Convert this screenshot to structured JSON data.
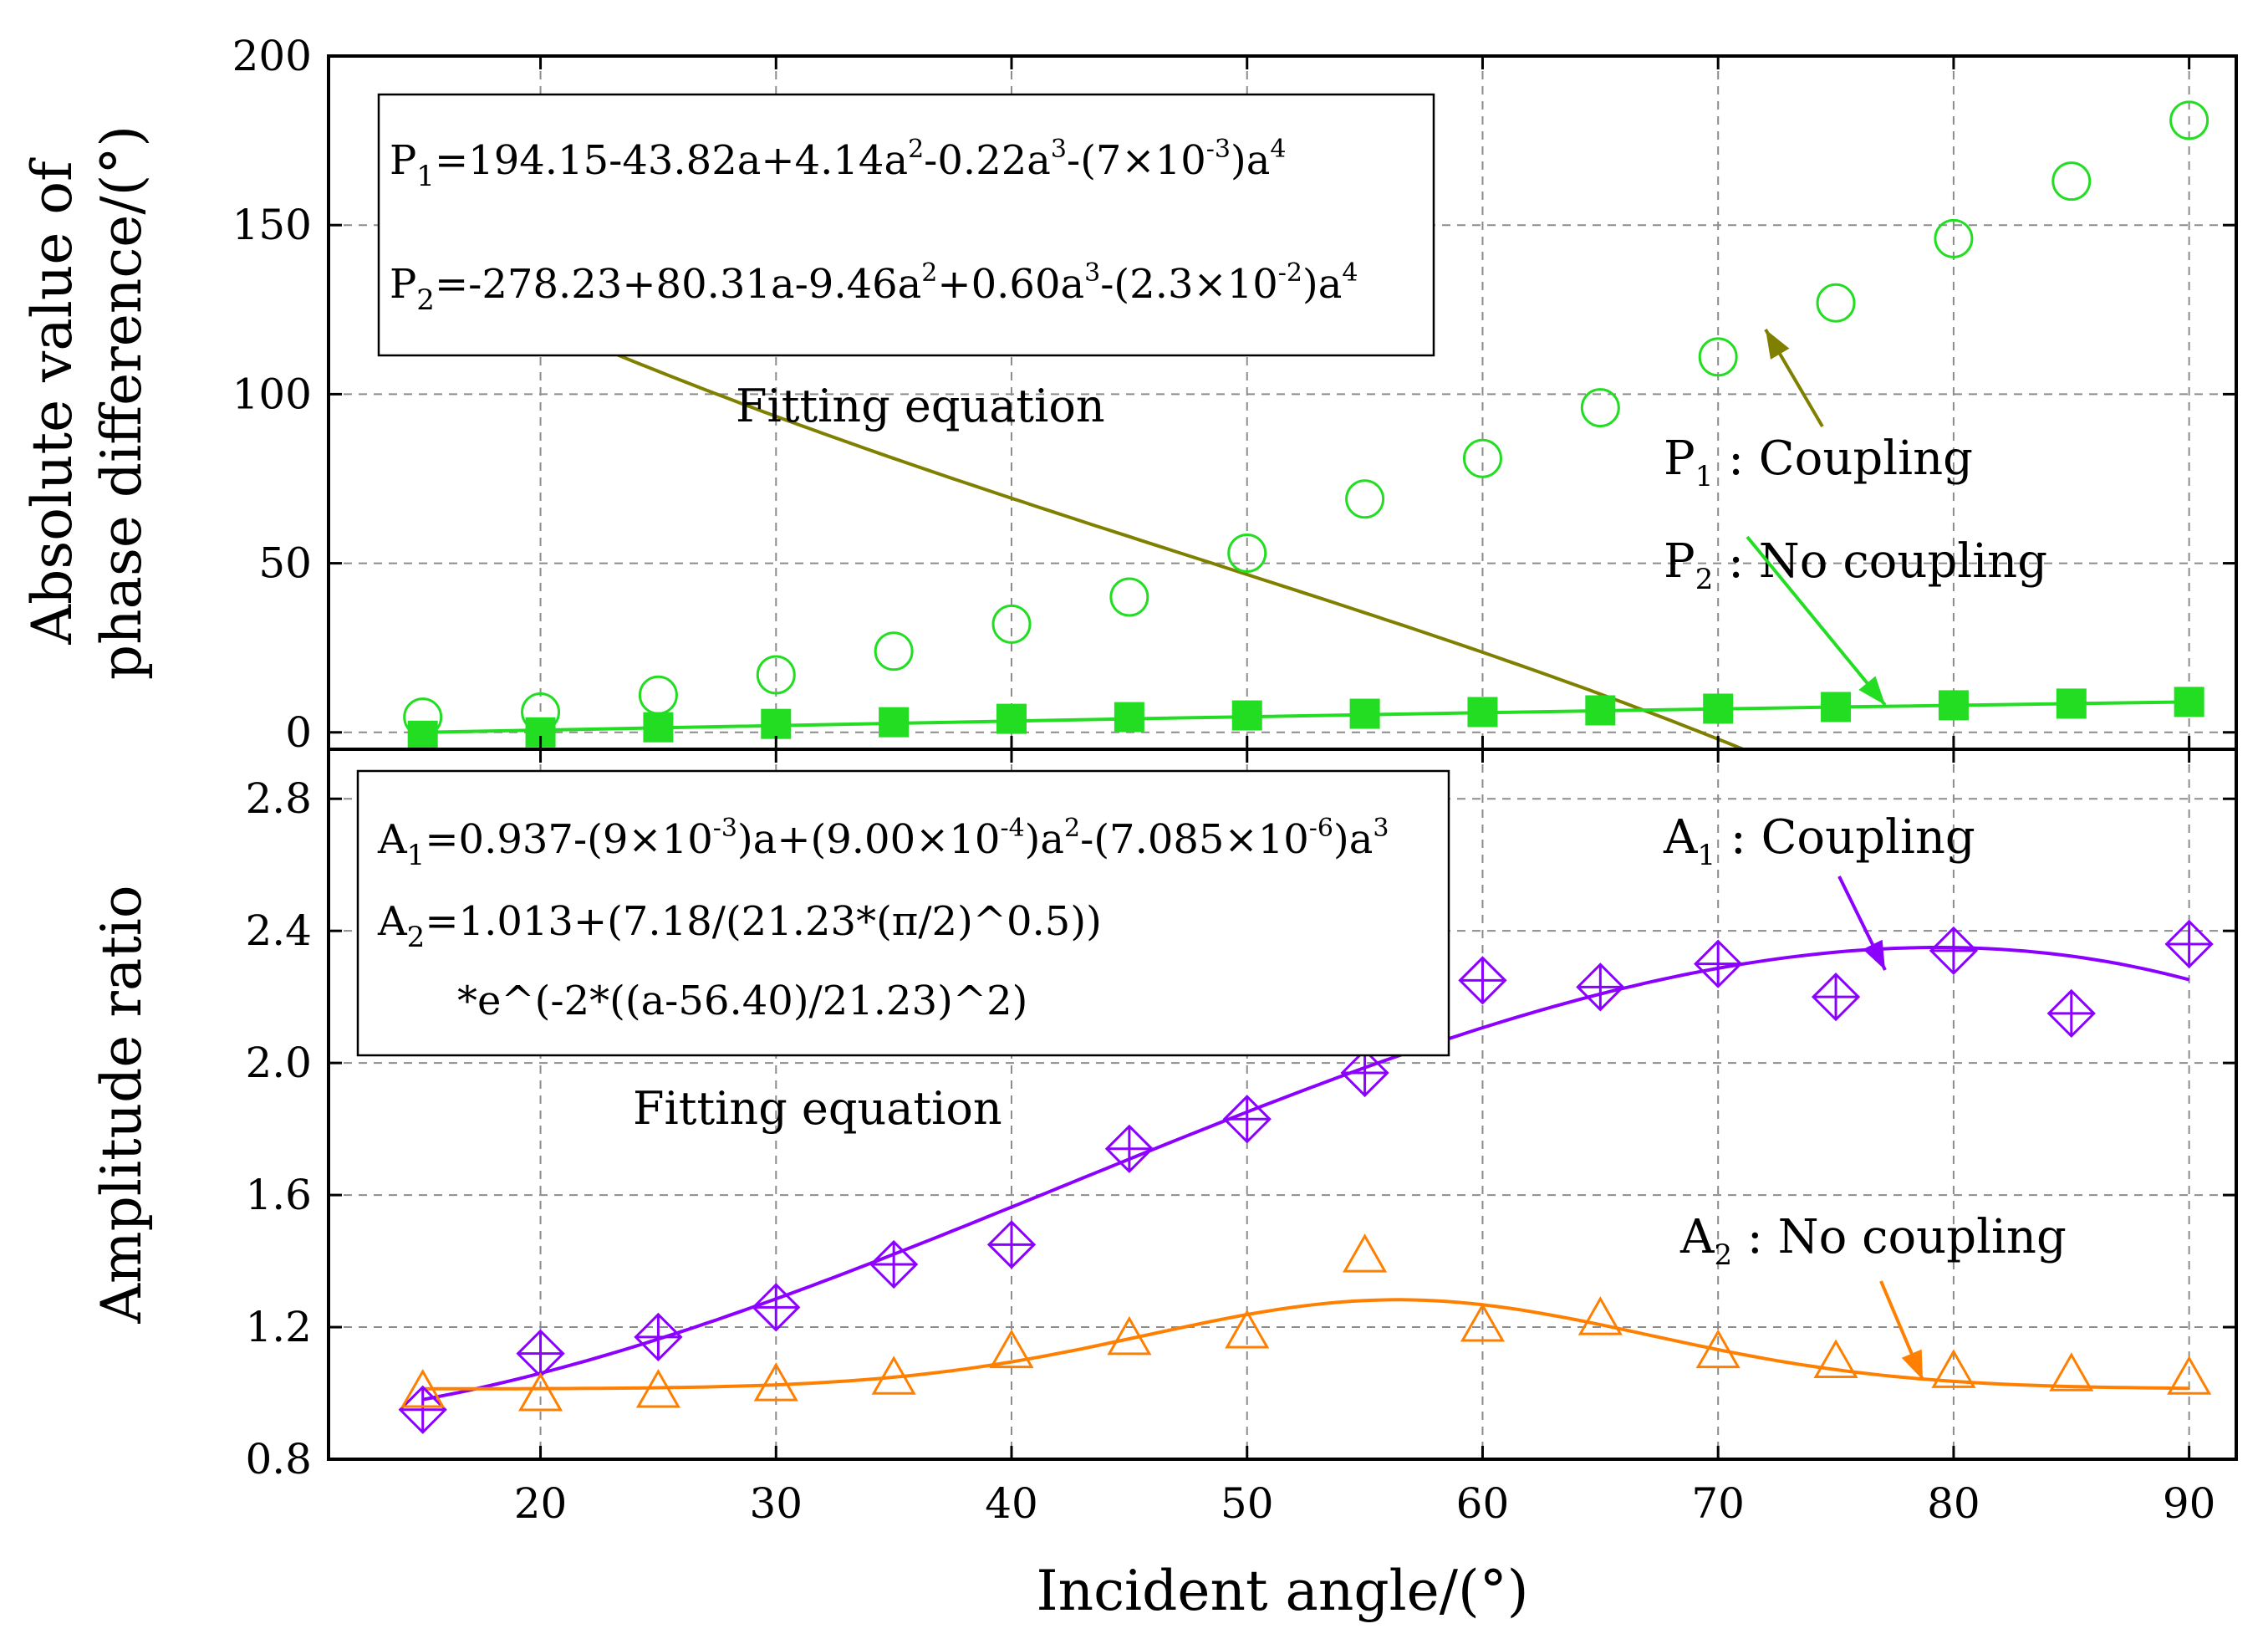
{
  "chart_data": [
    {
      "type": "line",
      "panel": "top",
      "xlabel": "Incident angle/(°)",
      "ylabel": [
        "Absolute value of",
        "phase difference/(°)"
      ],
      "xlim": [
        11,
        92
      ],
      "ylim": [
        -5,
        200
      ],
      "xticks": [
        20,
        30,
        40,
        50,
        60,
        70,
        80,
        90
      ],
      "yticks": [
        0,
        50,
        100,
        150,
        200
      ],
      "grid": true,
      "equations": [
        [
          "P",
          "1",
          "=194.15-43.82a+4.14a",
          "2",
          "-0.22a",
          "3",
          "-(7×10",
          "-3",
          ")a",
          "4"
        ],
        [
          "P",
          "2",
          "=-278.23+80.31a-9.46a",
          "2",
          "+0.60a",
          "3",
          "-(2.3×10",
          "-2",
          ")a",
          "4"
        ]
      ],
      "equation_caption": "Fitting equation",
      "series": [
        {
          "name": "P1 : Coupling",
          "label_parts": [
            "P",
            "1",
            " : Coupling"
          ],
          "color": "#808000",
          "marker": "open-circle",
          "marker_color": "#22dd22",
          "x": [
            15,
            20,
            25,
            30,
            35,
            40,
            45,
            50,
            55,
            60,
            65,
            70,
            75,
            80,
            85,
            90
          ],
          "values": [
            4.5,
            6,
            11,
            17,
            24,
            32,
            40,
            53,
            69,
            81,
            96,
            111,
            127,
            146,
            163,
            181
          ],
          "fit": {
            "kind": "poly",
            "coeffs": [
              194.15,
              -43.82,
              4.14,
              -0.22,
              -0.007
            ],
            "scale": 0.1,
            "x_range": [
              15,
              90
            ]
          }
        },
        {
          "name": "P2 : No coupling",
          "label_parts": [
            "P",
            "2",
            " : No coupling"
          ],
          "color": "#22dd22",
          "marker": "filled-square",
          "marker_color": "#22dd22",
          "x": [
            15,
            20,
            25,
            30,
            35,
            40,
            45,
            50,
            55,
            60,
            65,
            70,
            75,
            80,
            85,
            90
          ],
          "values": [
            -1,
            0,
            1.5,
            2.5,
            3,
            4,
            4.5,
            5,
            5.5,
            6,
            6.5,
            7,
            7.5,
            8,
            8.5,
            9
          ],
          "fit": {
            "kind": "points",
            "x": [
              15,
              30,
              45,
              60,
              75,
              90
            ],
            "y": [
              0,
              2,
              4,
              5.8,
              7.5,
              9
            ]
          }
        }
      ]
    },
    {
      "type": "line",
      "panel": "bottom",
      "xlabel": "Incident angle/(°)",
      "ylabel": "Amplitude ratio",
      "xlim": [
        11,
        92
      ],
      "ylim": [
        0.8,
        2.95
      ],
      "xticks": [
        20,
        30,
        40,
        50,
        60,
        70,
        80,
        90
      ],
      "yticks": [
        0.8,
        1.2,
        1.6,
        2.0,
        2.4,
        2.8
      ],
      "grid": true,
      "equations": [
        [
          "A",
          "1",
          "=0.937-(9×10",
          "-3",
          ")a+(9.00×10",
          "-4",
          ")a",
          "2",
          "-(7.085×10",
          "-6",
          ")a",
          "3"
        ],
        [
          "A",
          "2",
          "=1.013+(7.18/(21.23*(π/2)^0.5))"
        ],
        [
          "*e^(-2*((a-56.40)/21.23)^2)"
        ]
      ],
      "equation_caption": "Fitting equation",
      "series": [
        {
          "name": "A1 : Coupling",
          "label_parts": [
            "A",
            "1",
            " : Coupling"
          ],
          "color": "#8b00ff",
          "marker": "diamond-cross",
          "marker_color": "#8b00ff",
          "x": [
            15,
            20,
            25,
            30,
            35,
            40,
            45,
            50,
            55,
            60,
            65,
            70,
            75,
            80,
            85,
            90
          ],
          "values": [
            0.95,
            1.12,
            1.17,
            1.26,
            1.39,
            1.45,
            1.74,
            1.83,
            1.97,
            2.25,
            2.23,
            2.3,
            2.2,
            2.34,
            2.15,
            2.36
          ],
          "fit": {
            "kind": "poly",
            "coeffs": [
              0.937,
              -0.009,
              0.0009,
              -7.085e-06
            ],
            "scale": 1,
            "x_range": [
              15,
              90
            ]
          }
        },
        {
          "name": "A2 : No coupling",
          "label_parts": [
            "A",
            "2",
            " : No coupling"
          ],
          "color": "#ff8000",
          "marker": "open-triangle",
          "marker_color": "#ff8000",
          "x": [
            15,
            20,
            25,
            30,
            35,
            40,
            45,
            50,
            55,
            60,
            65,
            70,
            75,
            80,
            85,
            90
          ],
          "values": [
            1.0,
            0.99,
            1.0,
            1.02,
            1.04,
            1.12,
            1.16,
            1.18,
            1.41,
            1.2,
            1.22,
            1.12,
            1.09,
            1.06,
            1.05,
            1.04
          ],
          "fit": {
            "kind": "gauss",
            "y0": 1.013,
            "A": 7.18,
            "w": 21.23,
            "xc": 56.4,
            "x_range": [
              15,
              90
            ]
          }
        }
      ]
    }
  ]
}
